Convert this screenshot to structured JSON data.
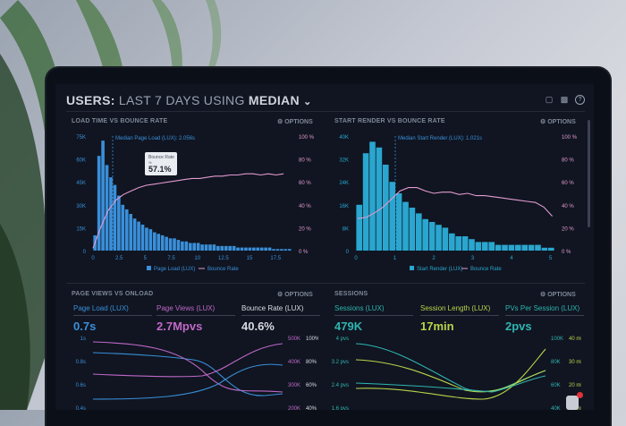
{
  "header": {
    "title_bold": "USERS:",
    "title_rest": "LAST 7 DAYS USING",
    "title_metric": "MEDIAN"
  },
  "header_icons": [
    "monitor-icon",
    "image-icon",
    "help-icon"
  ],
  "options_label": "OPTIONS",
  "panels": {
    "load_time": {
      "title": "LOAD TIME VS BOUNCE RATE",
      "annotation": "Median Page Load (LUX): 2.056s",
      "tooltip_label": "Bounce Rate",
      "tooltip_sub": "%",
      "tooltip_value": "57.1%",
      "legend": [
        "Page Load (LUX)",
        "Bounce Rate"
      ]
    },
    "start_render": {
      "title": "START RENDER VS BOUNCE RATE",
      "annotation": "Median Start Render (LUX): 1.021s",
      "legend": [
        "Start Render (LUX)",
        "Bounce Rate"
      ]
    },
    "page_views": {
      "title": "PAGE VIEWS VS ONLOAD",
      "metrics": [
        {
          "label": "Page Load (LUX)",
          "value": "0.7s",
          "color": "#3a8fd9"
        },
        {
          "label": "Page Views (LUX)",
          "value": "2.7Mpvs",
          "color": "#c068c8"
        },
        {
          "label": "Bounce Rate (LUX)",
          "value": "40.6%",
          "color": "#d8dbe2"
        }
      ],
      "left_axis": [
        "1s",
        "0.8s",
        "0.6s",
        "0.4s"
      ],
      "right_axis_a": [
        "500K",
        "400K",
        "300K",
        "200K"
      ],
      "right_axis_b": [
        "100%",
        "80%",
        "60%",
        "40%"
      ]
    },
    "sessions": {
      "title": "SESSIONS",
      "metrics": [
        {
          "label": "Sessions (LUX)",
          "value": "479K",
          "color": "#2fb5b0"
        },
        {
          "label": "Session Length (LUX)",
          "value": "17min",
          "color": "#b9d44a"
        },
        {
          "label": "PVs Per Session (LUX)",
          "value": "2pvs",
          "color": "#2fb5b0"
        }
      ],
      "left_axis": [
        "4 pvs",
        "3.2 pvs",
        "2.4 pvs",
        "1.6 pvs"
      ],
      "right_axis_a": [
        "100K",
        "80K",
        "60K",
        "40K"
      ],
      "right_axis_b": [
        "40 min",
        "30 min",
        "20 min",
        "10 min"
      ]
    }
  },
  "chart_data": [
    {
      "type": "bar",
      "title": "LOAD TIME VS BOUNCE RATE",
      "x_ticks": [
        "0",
        "2.5",
        "5",
        "7.5",
        "10",
        "12.5",
        "15",
        "17.5"
      ],
      "y_left": [
        "75K",
        "60K",
        "45K",
        "30K",
        "15K",
        "0"
      ],
      "y_right": [
        "100 %",
        "80 %",
        "60 %",
        "40 %",
        "20 %",
        "0 %"
      ],
      "bars": [
        10,
        62,
        72,
        56,
        48,
        43,
        36,
        30,
        27,
        24,
        21,
        19,
        17,
        15,
        14,
        12,
        11,
        10,
        9,
        8,
        8,
        7,
        6,
        6,
        5,
        5,
        5,
        4,
        4,
        4,
        4,
        3,
        3,
        3,
        3,
        3,
        2,
        2,
        2,
        2,
        2,
        2,
        2,
        2,
        2,
        1,
        1,
        1,
        1,
        1
      ],
      "line": [
        2,
        20,
        35,
        44,
        49,
        52,
        55,
        57,
        58,
        59,
        60,
        61,
        62,
        63,
        63,
        64,
        65,
        65,
        66,
        66,
        67,
        67,
        66,
        67,
        66,
        67
      ],
      "ylim_left": [
        0,
        75
      ],
      "ylim_right": [
        0,
        100
      ],
      "bar_color": "#3a8fd9",
      "line_color": "#e39ad0"
    },
    {
      "type": "bar",
      "title": "START RENDER VS BOUNCE RATE",
      "x_ticks": [
        "0",
        "1",
        "2",
        "3",
        "4",
        "5"
      ],
      "y_left": [
        "40K",
        "32K",
        "24K",
        "16K",
        "8K",
        "0"
      ],
      "y_right": [
        "100 %",
        "80 %",
        "60 %",
        "40 %",
        "20 %",
        "0 %"
      ],
      "bars": [
        16,
        34,
        38,
        36,
        30,
        24,
        20,
        17,
        15,
        13,
        11,
        10,
        9,
        8,
        6,
        5,
        5,
        4,
        3,
        3,
        3,
        2,
        2,
        2,
        2,
        2,
        2,
        2,
        1,
        1
      ],
      "line": [
        28,
        29,
        33,
        38,
        45,
        52,
        55,
        55,
        52,
        50,
        51,
        51,
        49,
        50,
        48,
        48,
        47,
        46,
        45,
        44,
        43,
        42,
        38,
        30
      ],
      "ylim_left": [
        0,
        40
      ],
      "ylim_right": [
        0,
        100
      ],
      "bar_color": "#2aa6cf",
      "line_color": "#e39ad0"
    }
  ]
}
